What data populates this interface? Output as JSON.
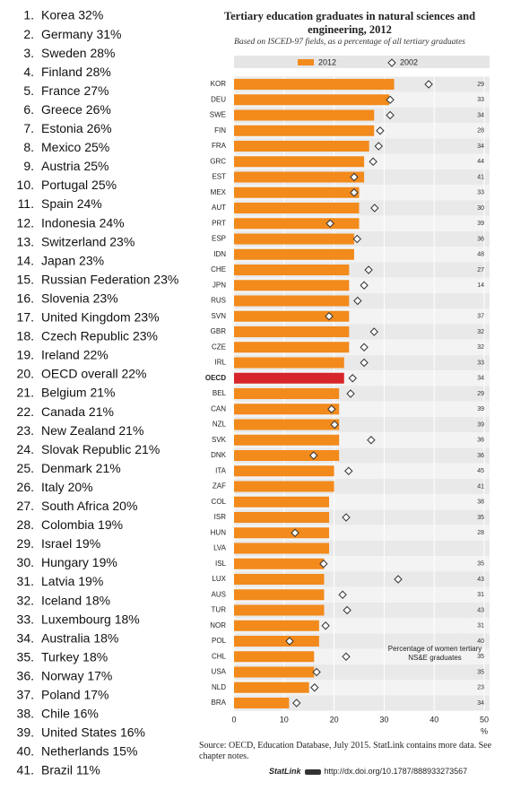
{
  "list": {
    "items": [
      {
        "rank": "1.",
        "label": "Korea 32%"
      },
      {
        "rank": "2.",
        "label": "Germany 31%"
      },
      {
        "rank": "3.",
        "label": "Sweden 28%"
      },
      {
        "rank": "4.",
        "label": "Finland 28%"
      },
      {
        "rank": "5.",
        "label": "France 27%"
      },
      {
        "rank": "6.",
        "label": "Greece 26%"
      },
      {
        "rank": "7.",
        "label": "Estonia 26%"
      },
      {
        "rank": "8.",
        "label": "Mexico 25%"
      },
      {
        "rank": "9.",
        "label": "Austria 25%"
      },
      {
        "rank": "10.",
        "label": "Portugal 25%"
      },
      {
        "rank": "11.",
        "label": "Spain 24%"
      },
      {
        "rank": "12.",
        "label": "Indonesia 24%"
      },
      {
        "rank": "13.",
        "label": "Switzerland 23%"
      },
      {
        "rank": "14.",
        "label": "Japan 23%"
      },
      {
        "rank": "15.",
        "label": "Russian Federation 23%"
      },
      {
        "rank": "16.",
        "label": "Slovenia 23%"
      },
      {
        "rank": "17.",
        "label": "United Kingdom 23%"
      },
      {
        "rank": "18.",
        "label": "Czech Republic 23%"
      },
      {
        "rank": "19.",
        "label": "Ireland 22%"
      },
      {
        "rank": "20.",
        "label": "OECD overall 22%"
      },
      {
        "rank": "21.",
        "label": "Belgium 21%"
      },
      {
        "rank": "22.",
        "label": "Canada 21%"
      },
      {
        "rank": "23.",
        "label": "New Zealand 21%"
      },
      {
        "rank": "24.",
        "label": "Slovak Republic 21%"
      },
      {
        "rank": "25.",
        "label": "Denmark 21%"
      },
      {
        "rank": "26.",
        "label": "Italy 20%"
      },
      {
        "rank": "27.",
        "label": "South Africa 20%"
      },
      {
        "rank": "28.",
        "label": "Colombia 19%"
      },
      {
        "rank": "29.",
        "label": "Israel 19%"
      },
      {
        "rank": "30.",
        "label": "Hungary 19%"
      },
      {
        "rank": "31.",
        "label": "Latvia 19%"
      },
      {
        "rank": "32.",
        "label": "Iceland 18%"
      },
      {
        "rank": "33.",
        "label": "Luxembourg 18%"
      },
      {
        "rank": "34.",
        "label": "Australia 18%"
      },
      {
        "rank": "35.",
        "label": "Turkey 18%"
      },
      {
        "rank": "36.",
        "label": "Norway 17%"
      },
      {
        "rank": "37.",
        "label": "Poland 17%"
      },
      {
        "rank": "38.",
        "label": "Chile 16%"
      },
      {
        "rank": "39.",
        "label": "United States 16%"
      },
      {
        "rank": "40.",
        "label": "Netherlands 15%"
      },
      {
        "rank": "41.",
        "label": "Brazil 11%"
      }
    ]
  },
  "chart_data": {
    "type": "bar",
    "orientation": "horizontal",
    "title": "Tertiary education graduates in natural sciences and engineering, 2012",
    "subtitle": "Based on ISCED-97 fields, as a percentage of all tertiary graduates",
    "categories": [
      "KOR",
      "DEU",
      "SWE",
      "FIN",
      "FRA",
      "GRC",
      "EST",
      "MEX",
      "AUT",
      "PRT",
      "ESP",
      "IDN",
      "CHE",
      "JPN",
      "RUS",
      "SVN",
      "GBR",
      "CZE",
      "IRL",
      "OECD",
      "BEL",
      "CAN",
      "NZL",
      "SVK",
      "DNK",
      "ITA",
      "ZAF",
      "COL",
      "ISR",
      "HUN",
      "LVA",
      "ISL",
      "LUX",
      "AUS",
      "TUR",
      "NOR",
      "POL",
      "CHL",
      "USA",
      "NLD",
      "BRA"
    ],
    "series": [
      {
        "name": "2012",
        "color": "#f28a1c",
        "values": [
          32,
          31,
          28,
          28,
          27,
          26,
          26,
          25,
          25,
          25,
          24,
          24,
          23,
          23,
          23,
          23,
          23,
          23,
          22,
          22,
          21,
          21,
          21,
          21,
          21,
          20,
          20,
          19,
          19,
          19,
          19,
          18,
          18,
          18,
          18,
          17,
          17,
          16,
          16,
          15,
          11
        ]
      },
      {
        "name": "2002",
        "color": "#333333",
        "marker": "diamond",
        "values": [
          38.9,
          31.2,
          31.2,
          29.2,
          28.9,
          27.8,
          24.0,
          24.0,
          28.1,
          19.2,
          24.6,
          null,
          26.9,
          26.0,
          24.7,
          19.0,
          28.0,
          26.0,
          26.0,
          23.7,
          23.3,
          19.5,
          20.1,
          27.4,
          15.9,
          22.9,
          null,
          null,
          22.4,
          12.2,
          null,
          17.9,
          32.8,
          21.7,
          22.6,
          18.3,
          11.1,
          22.4,
          16.5,
          16.1,
          12.5
        ]
      }
    ],
    "highlight_category": "OECD",
    "highlight_color": "#d7262b",
    "women_share": [
      29,
      33,
      34,
      28,
      34,
      44,
      41,
      33,
      30,
      39,
      36,
      48,
      27,
      14,
      null,
      37,
      32,
      32,
      33,
      34,
      29,
      39,
      39,
      36,
      36,
      45,
      41,
      38,
      35,
      28,
      null,
      35,
      43,
      31,
      43,
      31,
      40,
      35,
      35,
      23,
      34
    ],
    "xlim": [
      0,
      50
    ],
    "xticks": [
      0,
      10,
      20,
      30,
      40,
      50
    ],
    "xlabel": "%",
    "annotation": "Percentage of women tertiary NS&E graduates",
    "source": "Source: OECD, Education Database, July 2015. StatLink contains more data. See chapter notes.",
    "statlink": {
      "label": "StatLink",
      "url": "http://dx.doi.org/10.1787/888933273567"
    }
  }
}
